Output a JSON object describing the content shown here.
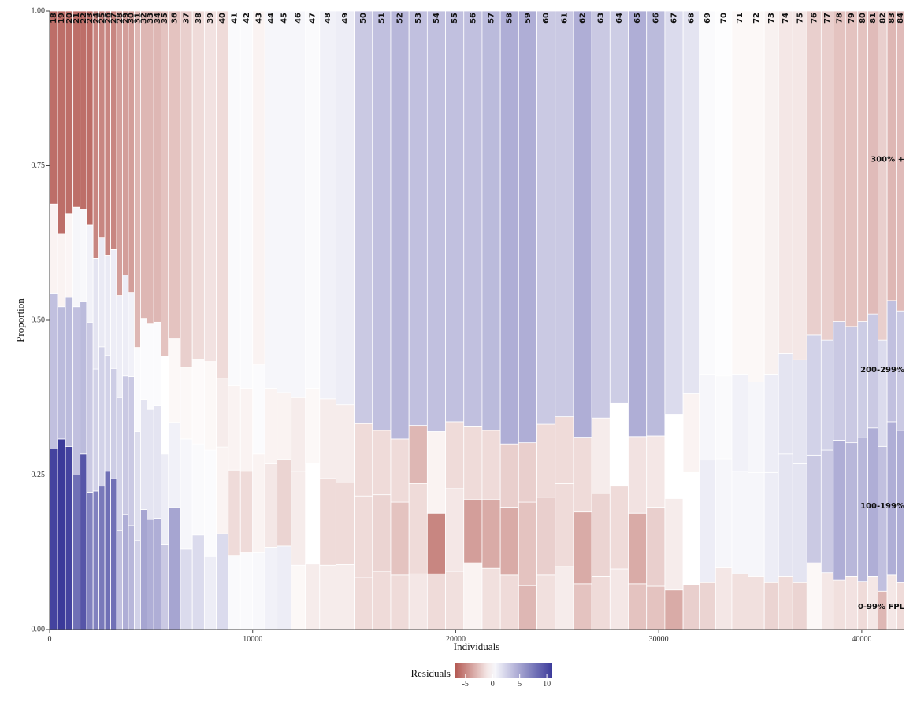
{
  "chart_data": {
    "type": "mosaic",
    "xlabel": "Individuals",
    "ylabel": "Proportion",
    "xlim": [
      0,
      42100
    ],
    "ylim": [
      0,
      1
    ],
    "x_ticks": [
      0,
      10000,
      20000,
      30000,
      40000
    ],
    "x_tick_labels": [
      "0",
      "10000",
      "20000",
      "30000",
      "40000"
    ],
    "y_ticks": [
      0,
      0.25,
      0.5,
      0.75,
      1
    ],
    "y_tick_labels": [
      "0.00",
      "0.25",
      "0.50",
      "0.75",
      "1.00"
    ],
    "segment_labels": [
      {
        "label": "300% +",
        "y": 0.76
      },
      {
        "label": "200-299%",
        "y": 0.42
      },
      {
        "label": "100-199%",
        "y": 0.2
      },
      {
        "label": "0-99% FPL",
        "y": 0.037
      }
    ],
    "legend": {
      "title": "Residuals",
      "min": -7,
      "max": 11,
      "ticks": [
        -5,
        0,
        5,
        10
      ],
      "colors": {
        "low": "#b2564f",
        "mid": "#ffffff",
        "high": "#3b3a9a"
      }
    },
    "columns": [
      {
        "label": "18",
        "x0": 0,
        "x1": 390,
        "cum": [
          0.292,
          0.544,
          0.688
        ],
        "res": [
          10.5,
          3.5,
          -0.5,
          -6
        ]
      },
      {
        "label": "19",
        "x0": 390,
        "x1": 780,
        "cum": [
          0.308,
          0.522,
          0.64
        ],
        "res": [
          11,
          3.8,
          -0.5,
          -6
        ]
      },
      {
        "label": "20",
        "x0": 780,
        "x1": 1150,
        "cum": [
          0.296,
          0.537,
          0.672
        ],
        "res": [
          10.5,
          3.8,
          -0.4,
          -6
        ]
      },
      {
        "label": "21",
        "x0": 1150,
        "x1": 1500,
        "cum": [
          0.25,
          0.522,
          0.683
        ],
        "res": [
          8,
          3.5,
          0.5,
          -6
        ]
      },
      {
        "label": "22",
        "x0": 1500,
        "x1": 1820,
        "cum": [
          0.284,
          0.53,
          0.68
        ],
        "res": [
          9.5,
          3.8,
          0.4,
          -6
        ]
      },
      {
        "label": "23",
        "x0": 1820,
        "x1": 2140,
        "cum": [
          0.222,
          0.497,
          0.654
        ],
        "res": [
          7,
          3,
          0.8,
          -6
        ]
      },
      {
        "label": "24",
        "x0": 2140,
        "x1": 2430,
        "cum": [
          0.224,
          0.421,
          0.6
        ],
        "res": [
          7,
          2.5,
          1.5,
          -5
        ]
      },
      {
        "label": "25",
        "x0": 2430,
        "x1": 2720,
        "cum": [
          0.232,
          0.457,
          0.634
        ],
        "res": [
          7.5,
          2.5,
          1.2,
          -5
        ]
      },
      {
        "label": "26",
        "x0": 2720,
        "x1": 3010,
        "cum": [
          0.256,
          0.443,
          0.605
        ],
        "res": [
          8,
          2.5,
          1.2,
          -5
        ]
      },
      {
        "label": "27",
        "x0": 3010,
        "x1": 3300,
        "cum": [
          0.244,
          0.422,
          0.614
        ],
        "res": [
          8,
          2.8,
          1,
          -5
        ]
      },
      {
        "label": "28",
        "x0": 3300,
        "x1": 3590,
        "cum": [
          0.16,
          0.375,
          0.54
        ],
        "res": [
          3.5,
          2.5,
          1,
          -4
        ]
      },
      {
        "label": "29",
        "x0": 3590,
        "x1": 3880,
        "cum": [
          0.186,
          0.41,
          0.573
        ],
        "res": [
          4.5,
          3,
          1,
          -4
        ]
      },
      {
        "label": "30",
        "x0": 3880,
        "x1": 4170,
        "cum": [
          0.168,
          0.409,
          0.545
        ],
        "res": [
          4,
          3,
          0.8,
          -4
        ]
      },
      {
        "label": "31",
        "x0": 4170,
        "x1": 4480,
        "cum": [
          0.144,
          0.32,
          0.456
        ],
        "res": [
          2.5,
          1.8,
          0.3,
          -3
        ]
      },
      {
        "label": "32",
        "x0": 4480,
        "x1": 4790,
        "cum": [
          0.194,
          0.372,
          0.503
        ],
        "res": [
          5,
          1.5,
          0.2,
          -3
        ]
      },
      {
        "label": "33",
        "x0": 4790,
        "x1": 5130,
        "cum": [
          0.178,
          0.356,
          0.494
        ],
        "res": [
          4.5,
          1.5,
          0.2,
          -3
        ]
      },
      {
        "label": "34",
        "x0": 5130,
        "x1": 5490,
        "cum": [
          0.18,
          0.362,
          0.497
        ],
        "res": [
          4.5,
          1.5,
          0.2,
          -3
        ]
      },
      {
        "label": "35",
        "x0": 5490,
        "x1": 5850,
        "cum": [
          0.138,
          0.284,
          0.442
        ],
        "res": [
          3,
          1,
          0,
          -2.5
        ]
      },
      {
        "label": "36",
        "x0": 5850,
        "x1": 6440,
        "cum": [
          0.198,
          0.335,
          0.47
        ],
        "res": [
          5,
          0.8,
          -0.3,
          -2.5
        ]
      },
      {
        "label": "37",
        "x0": 6440,
        "x1": 7030,
        "cum": [
          0.13,
          0.308,
          0.424
        ],
        "res": [
          2,
          0.5,
          -0.3,
          -2
        ]
      },
      {
        "label": "38",
        "x0": 7030,
        "x1": 7620,
        "cum": [
          0.153,
          0.3,
          0.437
        ],
        "res": [
          2,
          0.3,
          -0.2,
          -1.5
        ]
      },
      {
        "label": "39",
        "x0": 7620,
        "x1": 8210,
        "cum": [
          0.118,
          0.29,
          0.433
        ],
        "res": [
          1,
          0.2,
          -0.3,
          -1.2
        ]
      },
      {
        "label": "40",
        "x0": 8210,
        "x1": 8800,
        "cum": [
          0.155,
          0.295,
          0.406
        ],
        "res": [
          2,
          -0.5,
          -0.8,
          -1.5
        ]
      },
      {
        "label": "41",
        "x0": 8800,
        "x1": 9400,
        "cum": [
          0.12,
          0.258,
          0.395
        ],
        "res": [
          0.3,
          -1.5,
          -0.5,
          0.3
        ]
      },
      {
        "label": "42",
        "x0": 9400,
        "x1": 10000,
        "cum": [
          0.124,
          0.256,
          0.39
        ],
        "res": [
          0.3,
          -1.5,
          -0.5,
          0.3
        ]
      },
      {
        "label": "43",
        "x0": 10000,
        "x1": 10600,
        "cum": [
          0.124,
          0.284,
          0.428
        ],
        "res": [
          0.4,
          -0.5,
          0.2,
          -0.5
        ]
      },
      {
        "label": "44",
        "x0": 10600,
        "x1": 11200,
        "cum": [
          0.133,
          0.268,
          0.39
        ],
        "res": [
          0.8,
          -1,
          -0.5,
          0.5
        ]
      },
      {
        "label": "45",
        "x0": 11200,
        "x1": 11900,
        "cum": [
          0.135,
          0.275,
          0.383
        ],
        "res": [
          1,
          -1.8,
          -0.5,
          0.5
        ]
      },
      {
        "label": "46",
        "x0": 11900,
        "x1": 12600,
        "cum": [
          0.104,
          0.256,
          0.375
        ],
        "res": [
          -0.3,
          -0.8,
          -0.8,
          0.5
        ]
      },
      {
        "label": "47",
        "x0": 12600,
        "x1": 13300,
        "cum": [
          0.106,
          0.268,
          0.39
        ],
        "res": [
          -0.8,
          0,
          -0.3,
          0.3
        ]
      },
      {
        "label": "48",
        "x0": 13300,
        "x1": 14100,
        "cum": [
          0.104,
          0.244,
          0.373
        ],
        "res": [
          -0.8,
          -1.5,
          -0.8,
          0.8
        ]
      },
      {
        "label": "49",
        "x0": 14100,
        "x1": 15000,
        "cum": [
          0.105,
          0.238,
          0.363
        ],
        "res": [
          -0.8,
          -1.5,
          -0.8,
          1
        ]
      },
      {
        "label": "50",
        "x0": 15000,
        "x1": 15900,
        "cum": [
          0.084,
          0.216,
          0.333
        ],
        "res": [
          -1.5,
          -1.5,
          -1.5,
          3
        ]
      },
      {
        "label": "51",
        "x0": 15900,
        "x1": 16800,
        "cum": [
          0.094,
          0.218,
          0.322
        ],
        "res": [
          -1.5,
          -1.8,
          -1.5,
          3.5
        ]
      },
      {
        "label": "52",
        "x0": 16800,
        "x1": 17700,
        "cum": [
          0.088,
          0.206,
          0.308
        ],
        "res": [
          -1.5,
          -2.5,
          -1.5,
          4
        ]
      },
      {
        "label": "53",
        "x0": 17700,
        "x1": 18600,
        "cum": [
          0.09,
          0.236,
          0.33
        ],
        "res": [
          -1,
          -1.5,
          -3,
          3.5
        ]
      },
      {
        "label": "54",
        "x0": 18600,
        "x1": 19500,
        "cum": [
          0.09,
          0.188,
          0.32
        ],
        "res": [
          -1.5,
          -5,
          -0.5,
          3.5
        ]
      },
      {
        "label": "55",
        "x0": 19500,
        "x1": 20400,
        "cum": [
          0.094,
          0.228,
          0.336
        ],
        "res": [
          -1.3,
          -1,
          -1.5,
          3.5
        ]
      },
      {
        "label": "56",
        "x0": 20400,
        "x1": 21300,
        "cum": [
          0.108,
          0.21,
          0.329
        ],
        "res": [
          -0.5,
          -4,
          -1.5,
          3.5
        ]
      },
      {
        "label": "57",
        "x0": 21300,
        "x1": 22200,
        "cum": [
          0.099,
          0.21,
          0.322
        ],
        "res": [
          -1.3,
          -3.5,
          -1.5,
          3.8
        ]
      },
      {
        "label": "58",
        "x0": 22200,
        "x1": 23100,
        "cum": [
          0.088,
          0.198,
          0.3
        ],
        "res": [
          -1.5,
          -3.5,
          -2,
          4.5
        ]
      },
      {
        "label": "59",
        "x0": 23100,
        "x1": 24000,
        "cum": [
          0.071,
          0.206,
          0.302
        ],
        "res": [
          -3,
          -2.5,
          -2,
          4.5
        ]
      },
      {
        "label": "60",
        "x0": 24000,
        "x1": 24900,
        "cum": [
          0.088,
          0.214,
          0.332
        ],
        "res": [
          -1.3,
          -2,
          -1.5,
          3
        ]
      },
      {
        "label": "61",
        "x0": 24900,
        "x1": 25800,
        "cum": [
          0.102,
          0.236,
          0.344
        ],
        "res": [
          -0.8,
          -1.5,
          -1.5,
          3
        ]
      },
      {
        "label": "62",
        "x0": 25800,
        "x1": 26700,
        "cum": [
          0.074,
          0.19,
          0.311
        ],
        "res": [
          -2.5,
          -3.5,
          -1.5,
          4.5
        ]
      },
      {
        "label": "63",
        "x0": 26700,
        "x1": 27600,
        "cum": [
          0.086,
          0.22,
          0.342
        ],
        "res": [
          -1.5,
          -1.8,
          -0.8,
          3
        ]
      },
      {
        "label": "64",
        "x0": 27600,
        "x1": 28500,
        "cum": [
          0.098,
          0.232,
          0.366
        ],
        "res": [
          -1,
          -1.5,
          0,
          2.8
        ]
      },
      {
        "label": "65",
        "x0": 28500,
        "x1": 29400,
        "cum": [
          0.074,
          0.188,
          0.312
        ],
        "res": [
          -2.5,
          -3.5,
          -1.2,
          4.5
        ]
      },
      {
        "label": "66",
        "x0": 29400,
        "x1": 30300,
        "cum": [
          0.07,
          0.198,
          0.313
        ],
        "res": [
          -2.5,
          -2,
          -1,
          3.8
        ]
      },
      {
        "label": "67",
        "x0": 30300,
        "x1": 31200,
        "cum": [
          0.064,
          0.212,
          0.348
        ],
        "res": [
          -3.5,
          -0.8,
          0,
          2
        ]
      },
      {
        "label": "68",
        "x0": 31200,
        "x1": 32000,
        "cum": [
          0.072,
          0.254,
          0.381
        ],
        "res": [
          -2,
          0,
          -0.5,
          1.5
        ]
      },
      {
        "label": "69",
        "x0": 32000,
        "x1": 32800,
        "cum": [
          0.076,
          0.274,
          0.413
        ],
        "res": [
          -1.8,
          1,
          0.5,
          0.3
        ]
      },
      {
        "label": "70",
        "x0": 32800,
        "x1": 33600,
        "cum": [
          0.1,
          0.276,
          0.41
        ],
        "res": [
          -1,
          0.5,
          0.3,
          0.1
        ]
      },
      {
        "label": "71",
        "x0": 33600,
        "x1": 34400,
        "cum": [
          0.09,
          0.256,
          0.413
        ],
        "res": [
          -1.3,
          0.5,
          0.8,
          -0.3
        ]
      },
      {
        "label": "72",
        "x0": 34400,
        "x1": 35200,
        "cum": [
          0.086,
          0.254,
          0.4
        ],
        "res": [
          -1.3,
          0.5,
          0.5,
          -0.3
        ]
      },
      {
        "label": "73",
        "x0": 35200,
        "x1": 35900,
        "cum": [
          0.076,
          0.254,
          0.413
        ],
        "res": [
          -1.8,
          1,
          1,
          -0.6
        ]
      },
      {
        "label": "74",
        "x0": 35900,
        "x1": 36600,
        "cum": [
          0.086,
          0.284,
          0.446
        ],
        "res": [
          -1.5,
          1.5,
          1.5,
          -1
        ]
      },
      {
        "label": "75",
        "x0": 36600,
        "x1": 37300,
        "cum": [
          0.076,
          0.268,
          0.436
        ],
        "res": [
          -1.8,
          1.5,
          1.5,
          -1
        ]
      },
      {
        "label": "76",
        "x0": 37300,
        "x1": 38000,
        "cum": [
          0.108,
          0.282,
          0.476
        ],
        "res": [
          -0.3,
          3,
          2.5,
          -2
        ]
      },
      {
        "label": "77",
        "x0": 38000,
        "x1": 38600,
        "cum": [
          0.092,
          0.29,
          0.468
        ],
        "res": [
          -1,
          3,
          2.5,
          -2
        ]
      },
      {
        "label": "78",
        "x0": 38600,
        "x1": 39200,
        "cum": [
          0.08,
          0.306,
          0.498
        ],
        "res": [
          -1.3,
          4.5,
          3,
          -2.5
        ]
      },
      {
        "label": "79",
        "x0": 39200,
        "x1": 39800,
        "cum": [
          0.086,
          0.302,
          0.49
        ],
        "res": [
          -1.2,
          4,
          3,
          -2.5
        ]
      },
      {
        "label": "80",
        "x0": 39800,
        "x1": 40300,
        "cum": [
          0.078,
          0.31,
          0.498
        ],
        "res": [
          -1.5,
          4,
          2.8,
          -2.5
        ]
      },
      {
        "label": "81",
        "x0": 40300,
        "x1": 40800,
        "cum": [
          0.086,
          0.326,
          0.51
        ],
        "res": [
          -1,
          4.5,
          3,
          -2.8
        ]
      },
      {
        "label": "82",
        "x0": 40800,
        "x1": 41250,
        "cum": [
          0.062,
          0.296,
          0.468
        ],
        "res": [
          -3,
          3.5,
          2,
          -2
        ]
      },
      {
        "label": "83",
        "x0": 41250,
        "x1": 41700,
        "cum": [
          0.088,
          0.336,
          0.532
        ],
        "res": [
          -1,
          4.5,
          3.5,
          -3
        ]
      },
      {
        "label": "84",
        "x0": 41700,
        "x1": 42100,
        "cum": [
          0.076,
          0.322,
          0.515
        ],
        "res": [
          -1.5,
          4.5,
          3,
          -2.8
        ]
      }
    ]
  }
}
